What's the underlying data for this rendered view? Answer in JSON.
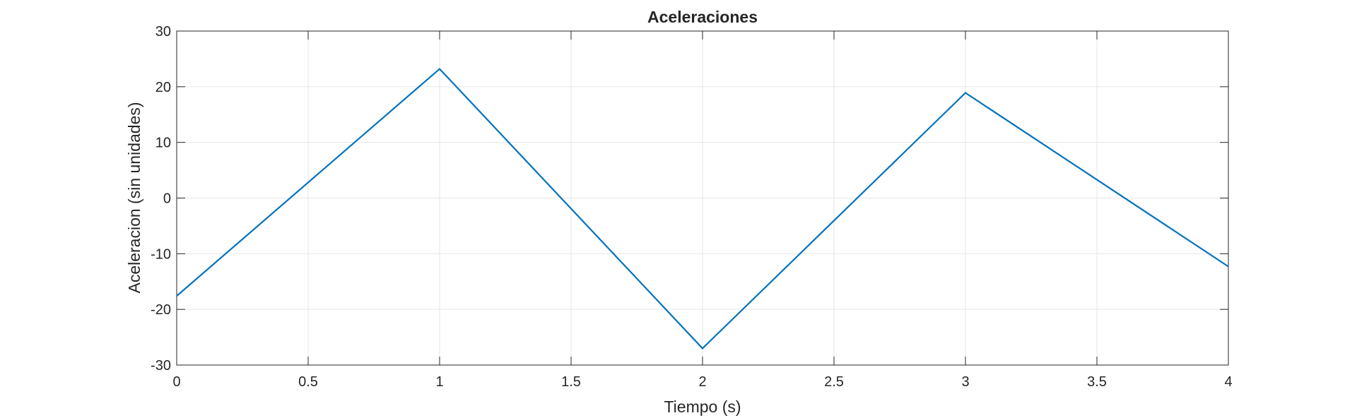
{
  "chart_data": {
    "type": "line",
    "title": "Aceleraciones",
    "xlabel": "Tiempo (s)",
    "ylabel": "Aceleracion (sin unidades)",
    "xlim": [
      0,
      4
    ],
    "ylim": [
      -30,
      30
    ],
    "xticks": [
      0,
      0.5,
      1,
      1.5,
      2,
      2.5,
      3,
      3.5,
      4
    ],
    "xtick_labels": [
      "0",
      "0.5",
      "1",
      "1.5",
      "2",
      "2.5",
      "3",
      "3.5",
      "4"
    ],
    "yticks": [
      -30,
      -20,
      -10,
      0,
      10,
      20,
      30
    ],
    "ytick_labels": [
      "-30",
      "-20",
      "-10",
      "0",
      "10",
      "20",
      "30"
    ],
    "grid": true,
    "colors": {
      "line": "#0072BD",
      "axes": "#262626",
      "grid": "#e6e6e6"
    },
    "series": [
      {
        "x": [
          0,
          1,
          2,
          3,
          4
        ],
        "y": [
          -17.6,
          23.2,
          -27.0,
          18.9,
          -12.3
        ]
      }
    ]
  }
}
